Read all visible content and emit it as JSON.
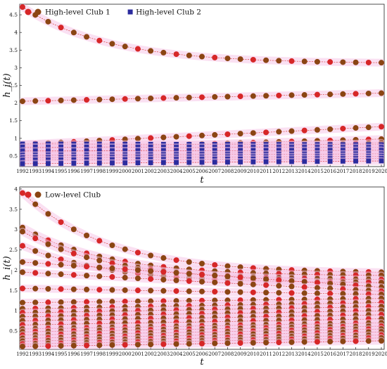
{
  "chart_data": [
    {
      "type": "scatter",
      "panel": "top",
      "xlabel": "t",
      "ylabel": "h_i(t)",
      "xlim": [
        1992,
        2020
      ],
      "ylim": [
        0.2,
        4.8
      ],
      "yticks": [
        0.5,
        1,
        1.5,
        2,
        2.5,
        3,
        3.5,
        4,
        4.5
      ],
      "xticks": [
        1992,
        1993,
        1994,
        1995,
        1996,
        1997,
        1998,
        1999,
        2000,
        2001,
        2002,
        2003,
        2004,
        2005,
        2006,
        2007,
        2008,
        2009,
        2010,
        2011,
        2012,
        2013,
        2014,
        2015,
        2016,
        2017,
        2018,
        2019,
        2020
      ],
      "legend": {
        "placement": "top-left",
        "entries": [
          "High-level Club 1",
          "High-level Club 2"
        ]
      },
      "grid": false,
      "series": [
        {
          "name": "High-level Club 1",
          "marker": "circle",
          "color": "#8b4513",
          "trajectories": [
            {
              "start": 4.72,
              "end": 3.12
            },
            {
              "start": 2.05,
              "end": 2.28
            },
            {
              "start": 0.83,
              "end": 1.33
            },
            {
              "start": 0.7,
              "end": 0.98
            },
            {
              "start": 0.58,
              "end": 0.87
            },
            {
              "start": 0.48,
              "end": 0.68
            }
          ]
        },
        {
          "name": "High-level Club 2",
          "marker": "square",
          "color": "#2b2b9e",
          "trajectories": [
            {
              "start": 0.84,
              "end": 0.82
            },
            {
              "start": 0.75,
              "end": 0.74
            },
            {
              "start": 0.64,
              "end": 0.66
            },
            {
              "start": 0.52,
              "end": 0.56
            },
            {
              "start": 0.45,
              "end": 0.49
            },
            {
              "start": 0.38,
              "end": 0.43
            },
            {
              "start": 0.28,
              "end": 0.36
            }
          ]
        }
      ]
    },
    {
      "type": "scatter",
      "panel": "bottom",
      "xlabel": "t",
      "ylabel": "h_i(t)",
      "xlim": [
        1992,
        2020
      ],
      "ylim": [
        0.05,
        4.05
      ],
      "yticks": [
        0.5,
        1,
        1.5,
        2,
        2.5,
        3,
        3.5,
        4
      ],
      "xticks": [
        1992,
        1993,
        1994,
        1995,
        1996,
        1997,
        1998,
        1999,
        2000,
        2001,
        2002,
        2003,
        2004,
        2005,
        2006,
        2007,
        2008,
        2009,
        2010,
        2011,
        2012,
        2013,
        2014,
        2015,
        2016,
        2017,
        2018,
        2019,
        2020
      ],
      "legend": {
        "placement": "top-left",
        "entries": [
          "Low-level Club"
        ]
      },
      "grid": false,
      "series": [
        {
          "name": "Low-level Club",
          "marker": "circle",
          "color": "#8b4513",
          "trajectories": [
            {
              "start": 3.9,
              "end": 1.92
            },
            {
              "start": 3.05,
              "end": 1.85
            },
            {
              "start": 2.95,
              "end": 1.75
            },
            {
              "start": 2.6,
              "end": 1.68
            },
            {
              "start": 2.2,
              "end": 1.58
            },
            {
              "start": 1.95,
              "end": 1.48
            },
            {
              "start": 1.55,
              "end": 1.4
            },
            {
              "start": 1.2,
              "end": 1.3
            },
            {
              "start": 1.05,
              "end": 1.2
            },
            {
              "start": 0.95,
              "end": 1.1
            },
            {
              "start": 0.85,
              "end": 1.0
            },
            {
              "start": 0.75,
              "end": 0.9
            },
            {
              "start": 0.65,
              "end": 0.8
            },
            {
              "start": 0.55,
              "end": 0.7
            },
            {
              "start": 0.48,
              "end": 0.62
            },
            {
              "start": 0.4,
              "end": 0.55
            },
            {
              "start": 0.32,
              "end": 0.48
            },
            {
              "start": 0.25,
              "end": 0.4
            },
            {
              "start": 0.18,
              "end": 0.33
            },
            {
              "start": 0.12,
              "end": 0.26
            }
          ]
        }
      ]
    }
  ]
}
